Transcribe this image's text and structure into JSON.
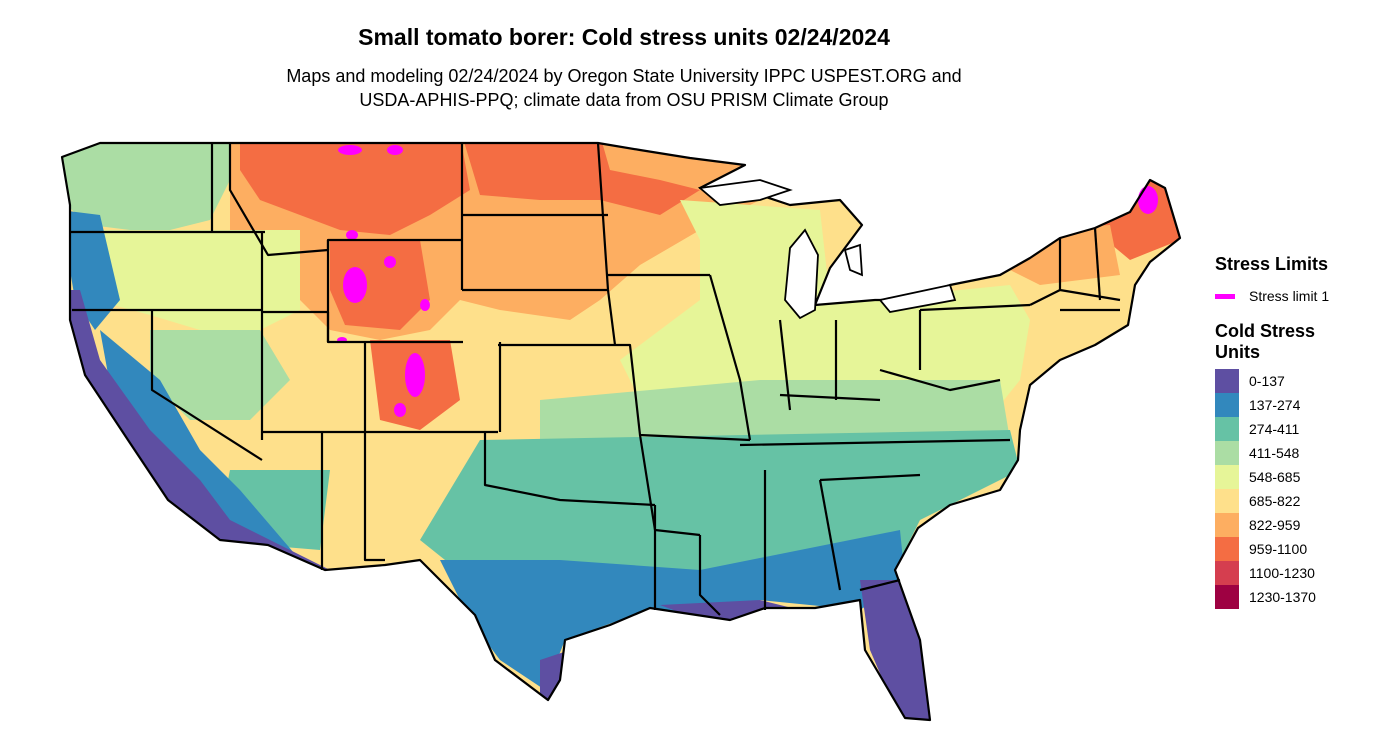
{
  "title": "Small tomato borer: Cold stress units 02/24/2024",
  "subtitle_line1": "Maps and modeling 02/24/2024 by Oregon State University IPPC USPEST.ORG and",
  "subtitle_line2": "USDA-APHIS-PPQ; climate data from OSU PRISM Climate Group",
  "legend": {
    "stress_title": "Stress Limits",
    "stress_item": "Stress limit 1",
    "stress_color": "#ff00ff",
    "units_title": "Cold Stress Units",
    "bins": [
      {
        "label": "0-137",
        "color": "#5e4fa2"
      },
      {
        "label": "137-274",
        "color": "#3288bd"
      },
      {
        "label": "274-411",
        "color": "#66c2a5"
      },
      {
        "label": "411-548",
        "color": "#abdda4"
      },
      {
        "label": "548-685",
        "color": "#e6f598"
      },
      {
        "label": "685-822",
        "color": "#fee08b"
      },
      {
        "label": "822-959",
        "color": "#fdae61"
      },
      {
        "label": "959-1100",
        "color": "#f46d43"
      },
      {
        "label": "1100-1230",
        "color": "#d53e4f"
      },
      {
        "label": "1230-1370",
        "color": "#9e0142"
      }
    ]
  }
}
